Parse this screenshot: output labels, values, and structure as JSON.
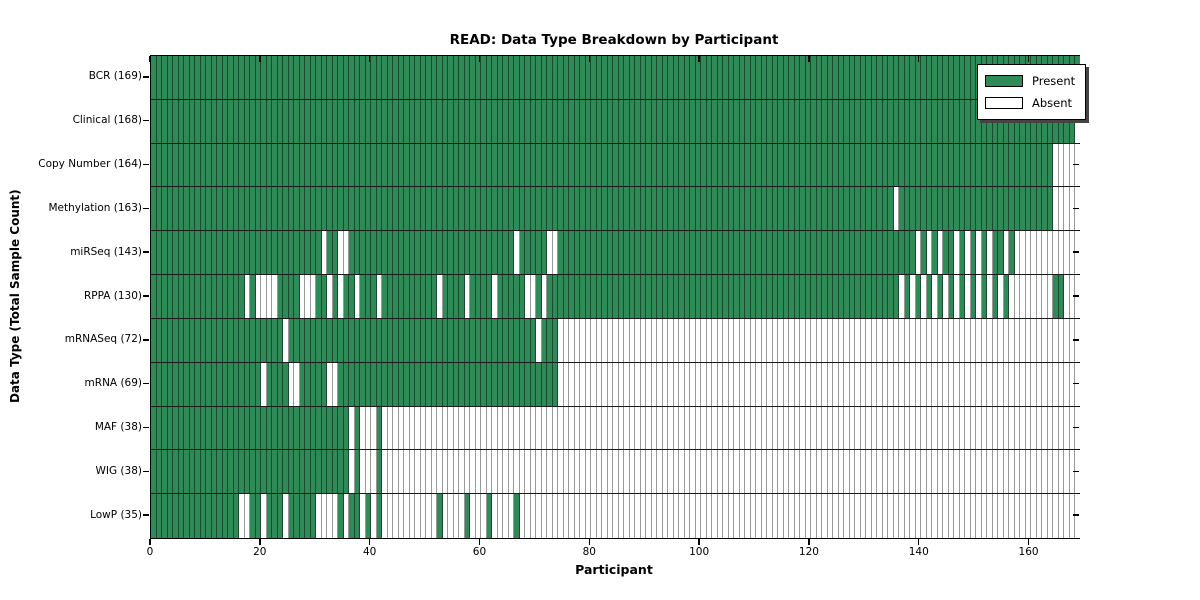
{
  "figure": {
    "title": "READ: Data Type Breakdown by Participant",
    "xlabel": "Participant",
    "ylabel": "Data Type (Total Sample Count)"
  },
  "legend": {
    "items": [
      {
        "label": "Present",
        "swatch": "present"
      },
      {
        "label": "Absent",
        "swatch": "absent"
      }
    ]
  },
  "chart_data": {
    "type": "heatmap",
    "title": "READ: Data Type Breakdown by Participant",
    "xlabel": "Participant",
    "ylabel": "Data Type (Total Sample Count)",
    "n_participants": 169,
    "x_axis": {
      "min": 0,
      "max": 169,
      "tick_values": [
        0,
        20,
        40,
        60,
        80,
        100,
        120,
        140,
        160
      ],
      "tick_labels": [
        "0",
        "20",
        "40",
        "60",
        "80",
        "100",
        "120",
        "140",
        "160"
      ]
    },
    "colors": {
      "present": "#2E8B57",
      "absent": "#FFFFFF"
    },
    "legend_position": "upper right",
    "rows": [
      {
        "name": "BCR",
        "label": "BCR (169)",
        "count": 169,
        "present_ranges": [
          [
            0,
            168
          ]
        ]
      },
      {
        "name": "Clinical",
        "label": "Clinical (168)",
        "count": 168,
        "present_ranges": [
          [
            0,
            167
          ]
        ]
      },
      {
        "name": "Copy Number",
        "label": "Copy Number (164)",
        "count": 164,
        "present_ranges": [
          [
            0,
            163
          ]
        ]
      },
      {
        "name": "Methylation",
        "label": "Methylation (163)",
        "count": 163,
        "present_ranges": [
          [
            0,
            134
          ],
          [
            136,
            163
          ]
        ]
      },
      {
        "name": "miRSeq",
        "label": "miRSeq (143)",
        "count": 143,
        "present_ranges": [
          [
            0,
            30
          ],
          [
            32,
            33
          ],
          [
            36,
            65
          ],
          [
            67,
            71
          ],
          [
            74,
            138
          ],
          [
            140,
            140
          ],
          [
            142,
            142
          ],
          [
            144,
            145
          ],
          [
            147,
            147
          ],
          [
            149,
            149
          ],
          [
            151,
            151
          ],
          [
            153,
            154
          ],
          [
            156,
            156
          ]
        ]
      },
      {
        "name": "RPPA",
        "label": "RPPA (130)",
        "count": 130,
        "present_ranges": [
          [
            0,
            16
          ],
          [
            18,
            18
          ],
          [
            23,
            26
          ],
          [
            30,
            31
          ],
          [
            33,
            33
          ],
          [
            35,
            36
          ],
          [
            38,
            40
          ],
          [
            42,
            51
          ],
          [
            53,
            56
          ],
          [
            58,
            61
          ],
          [
            63,
            67
          ],
          [
            70,
            70
          ],
          [
            72,
            135
          ],
          [
            137,
            137
          ],
          [
            139,
            139
          ],
          [
            141,
            141
          ],
          [
            143,
            143
          ],
          [
            145,
            145
          ],
          [
            147,
            147
          ],
          [
            149,
            149
          ],
          [
            151,
            151
          ],
          [
            153,
            153
          ],
          [
            155,
            155
          ],
          [
            164,
            165
          ]
        ]
      },
      {
        "name": "mRNASeq",
        "label": "mRNASeq (72)",
        "count": 72,
        "present_ranges": [
          [
            0,
            23
          ],
          [
            25,
            69
          ],
          [
            71,
            73
          ]
        ]
      },
      {
        "name": "mRNA",
        "label": "mRNA (69)",
        "count": 69,
        "present_ranges": [
          [
            0,
            19
          ],
          [
            21,
            24
          ],
          [
            27,
            31
          ],
          [
            34,
            73
          ]
        ]
      },
      {
        "name": "MAF",
        "label": "MAF (38)",
        "count": 38,
        "present_ranges": [
          [
            0,
            35
          ],
          [
            37,
            37
          ],
          [
            41,
            41
          ]
        ]
      },
      {
        "name": "WIG",
        "label": "WIG (38)",
        "count": 38,
        "present_ranges": [
          [
            0,
            35
          ],
          [
            37,
            37
          ],
          [
            41,
            41
          ]
        ]
      },
      {
        "name": "LowP",
        "label": "LowP (35)",
        "count": 35,
        "present_ranges": [
          [
            0,
            15
          ],
          [
            18,
            19
          ],
          [
            21,
            23
          ],
          [
            25,
            29
          ],
          [
            34,
            34
          ],
          [
            36,
            37
          ],
          [
            39,
            39
          ],
          [
            41,
            41
          ],
          [
            52,
            52
          ],
          [
            57,
            57
          ],
          [
            61,
            61
          ],
          [
            66,
            66
          ]
        ]
      }
    ]
  }
}
